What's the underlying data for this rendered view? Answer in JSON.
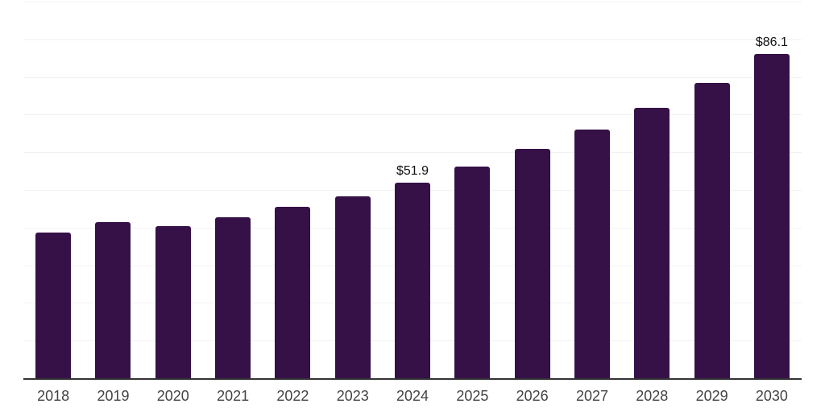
{
  "chart_data": {
    "type": "bar",
    "title": "",
    "xlabel": "",
    "ylabel": "",
    "categories": [
      "2018",
      "2019",
      "2020",
      "2021",
      "2022",
      "2023",
      "2024",
      "2025",
      "2026",
      "2027",
      "2028",
      "2029",
      "2030"
    ],
    "values": [
      38.6,
      41.4,
      40.4,
      42.7,
      45.5,
      48.4,
      51.9,
      56.1,
      61.0,
      66.0,
      71.9,
      78.5,
      86.1
    ],
    "data_labels": [
      {
        "category": "2024",
        "text": "$51.9"
      },
      {
        "category": "2030",
        "text": "$86.1"
      }
    ],
    "ylim": [
      0,
      100
    ],
    "gridline_step": 10,
    "grid": true,
    "legend": "none",
    "y_axis_labels_visible": false,
    "colors": {
      "bar": "#351148",
      "axis_line": "#333333",
      "gridline": "#f2f2f2",
      "tick_label": "#444444",
      "data_label": "#111111",
      "background": "#ffffff"
    }
  }
}
